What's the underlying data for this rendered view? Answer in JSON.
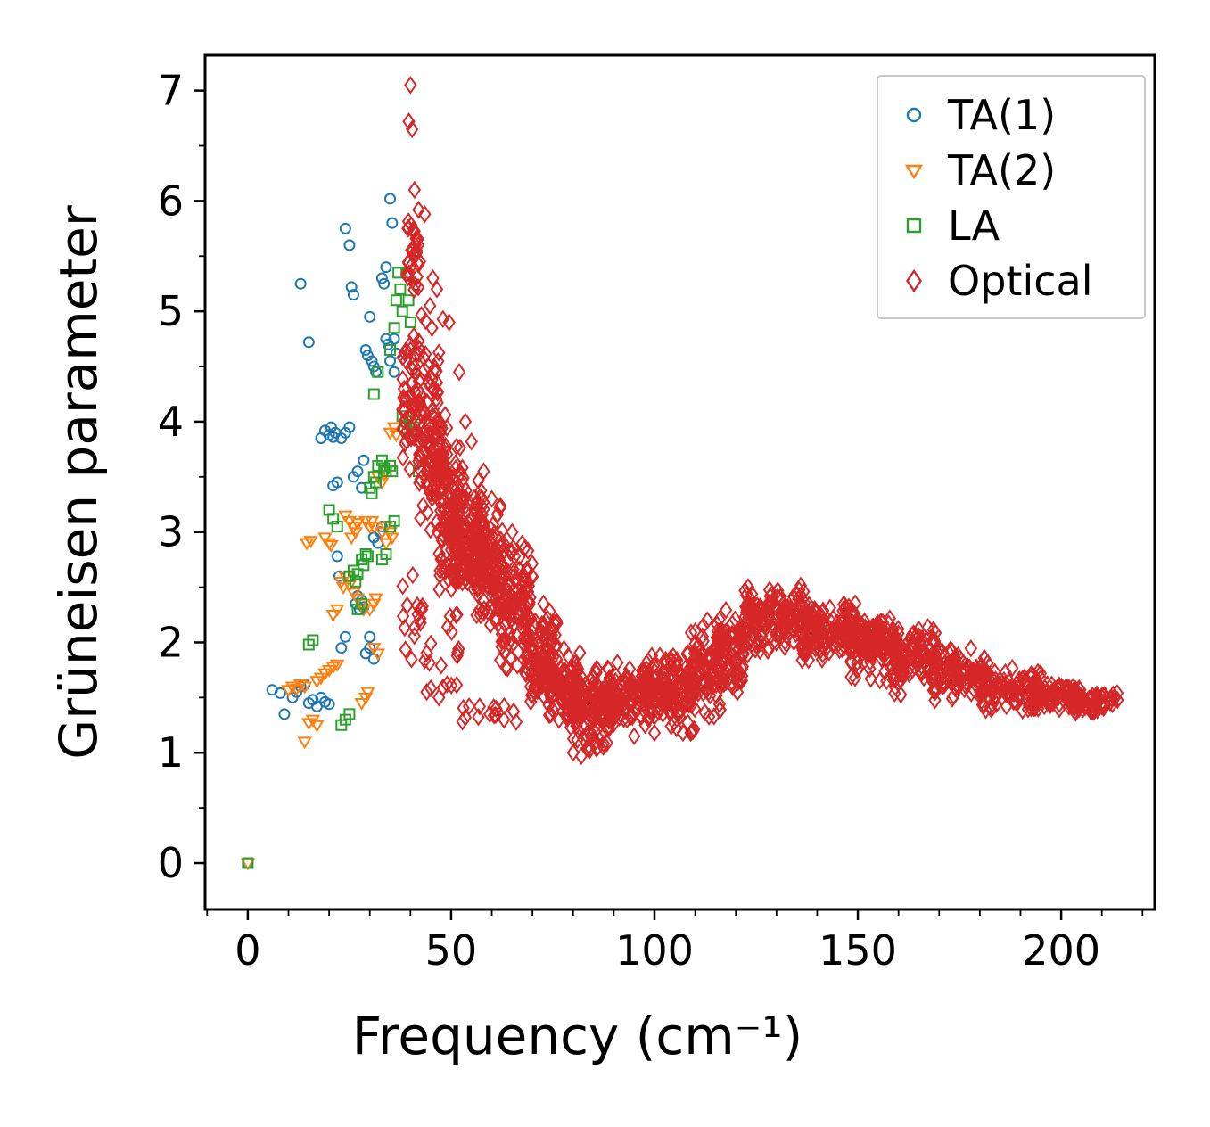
{
  "figure": {
    "background": "#ffffff"
  },
  "chart_data": {
    "type": "scatter",
    "title": "",
    "xlabel": "Frequency (cm⁻¹)",
    "ylabel": "Grüneisen parameter",
    "xlim": [
      -10.5,
      223
    ],
    "ylim": [
      -0.42,
      7.32
    ],
    "xticks": [
      0,
      50,
      100,
      150,
      200
    ],
    "yticks": [
      0,
      1,
      2,
      3,
      4,
      5,
      6,
      7
    ],
    "x_minor_step": 10,
    "y_minor_step": 0.5,
    "grid": false,
    "legend_position": "upper right",
    "series": [
      {
        "name": "TA(1)",
        "marker": "circle",
        "color": "#1f77b4",
        "points": [
          [
            0,
            0
          ],
          [
            6,
            1.57
          ],
          [
            8,
            1.54
          ],
          [
            9,
            1.35
          ],
          [
            11,
            1.5
          ],
          [
            12,
            1.55
          ],
          [
            13,
            1.6
          ],
          [
            14,
            1.62
          ],
          [
            15,
            1.45
          ],
          [
            16,
            1.48
          ],
          [
            17,
            1.42
          ],
          [
            18,
            1.5
          ],
          [
            19,
            1.46
          ],
          [
            20,
            1.44
          ],
          [
            13,
            5.25
          ],
          [
            15,
            4.72
          ],
          [
            18,
            3.85
          ],
          [
            19,
            3.92
          ],
          [
            20,
            3.88
          ],
          [
            20.5,
            3.95
          ],
          [
            21,
            3.86
          ],
          [
            21.5,
            3.9
          ],
          [
            23,
            3.85
          ],
          [
            24,
            3.9
          ],
          [
            25,
            3.95
          ],
          [
            21,
            3.42
          ],
          [
            22,
            3.45
          ],
          [
            22,
            2.78
          ],
          [
            22.5,
            2.6
          ],
          [
            23,
            1.95
          ],
          [
            24,
            2.05
          ],
          [
            24,
            5.75
          ],
          [
            25,
            5.6
          ],
          [
            25.5,
            5.22
          ],
          [
            26,
            5.15
          ],
          [
            26,
            3.5
          ],
          [
            27,
            3.55
          ],
          [
            28,
            3.4
          ],
          [
            28.5,
            3.65
          ],
          [
            26.5,
            2.35
          ],
          [
            27,
            2.42
          ],
          [
            27.5,
            2.3
          ],
          [
            28,
            2.38
          ],
          [
            28.5,
            2.32
          ],
          [
            29,
            1.9
          ],
          [
            30,
            2.05
          ],
          [
            31,
            1.85
          ],
          [
            30,
            1.95
          ],
          [
            29,
            4.65
          ],
          [
            29.5,
            4.6
          ],
          [
            30,
            4.95
          ],
          [
            30.5,
            4.55
          ],
          [
            31,
            4.5
          ],
          [
            31.5,
            4.45
          ],
          [
            31,
            2.95
          ],
          [
            32,
            2.9
          ],
          [
            32.5,
            3.0
          ],
          [
            33,
            3.05
          ],
          [
            33,
            5.3
          ],
          [
            33.5,
            5.25
          ],
          [
            34,
            4.75
          ],
          [
            34.5,
            4.7
          ],
          [
            34,
            5.4
          ],
          [
            35,
            6.02
          ],
          [
            35.5,
            5.8
          ],
          [
            36,
            4.75
          ],
          [
            36.5,
            4.62
          ],
          [
            36,
            4.45
          ],
          [
            35,
            4.55
          ]
        ]
      },
      {
        "name": "TA(2)",
        "marker": "triangle-down",
        "color": "#ff7f0e",
        "points": [
          [
            0,
            0
          ],
          [
            10,
            1.57
          ],
          [
            11,
            1.6
          ],
          [
            12,
            1.58
          ],
          [
            13,
            1.62
          ],
          [
            14,
            1.6
          ],
          [
            14,
            1.1
          ],
          [
            15,
            1.27
          ],
          [
            16,
            1.3
          ],
          [
            17,
            1.25
          ],
          [
            14.5,
            2.9
          ],
          [
            15.5,
            2.92
          ],
          [
            17,
            1.65
          ],
          [
            18,
            1.68
          ],
          [
            19,
            1.72
          ],
          [
            20,
            1.75
          ],
          [
            21,
            1.78
          ],
          [
            22,
            1.8
          ],
          [
            19,
            2.95
          ],
          [
            20,
            2.9
          ],
          [
            20.5,
            2.88
          ],
          [
            21,
            2.25
          ],
          [
            22,
            2.3
          ],
          [
            23,
            2.55
          ],
          [
            23.5,
            2.5
          ],
          [
            24,
            2.6
          ],
          [
            25,
            2.52
          ],
          [
            24,
            3.15
          ],
          [
            25,
            3.1
          ],
          [
            25.5,
            2.95
          ],
          [
            26,
            3.05
          ],
          [
            26.5,
            3.0
          ],
          [
            27,
            3.08
          ],
          [
            26,
            2.45
          ],
          [
            27,
            2.4
          ],
          [
            28,
            2.35
          ],
          [
            28.5,
            2.3
          ],
          [
            28,
            1.45
          ],
          [
            29,
            1.5
          ],
          [
            29.5,
            1.55
          ],
          [
            29,
            3.1
          ],
          [
            30,
            3.05
          ],
          [
            30.5,
            3.1
          ],
          [
            31,
            3.05
          ],
          [
            30,
            2.3
          ],
          [
            31,
            2.35
          ],
          [
            31.5,
            2.4
          ],
          [
            31,
            1.95
          ],
          [
            32,
            1.9
          ],
          [
            32,
            3.5
          ],
          [
            33,
            3.45
          ],
          [
            33.5,
            3.52
          ],
          [
            34,
            3.55
          ],
          [
            34,
            2.9
          ],
          [
            35,
            3.0
          ],
          [
            35.5,
            2.95
          ],
          [
            35,
            3.9
          ],
          [
            36,
            3.95
          ],
          [
            36.5,
            3.88
          ],
          [
            33,
            3.0
          ],
          [
            34,
            3.05
          ]
        ]
      },
      {
        "name": "LA",
        "marker": "square",
        "color": "#2ca02c",
        "points": [
          [
            0,
            0
          ],
          [
            15,
            1.98
          ],
          [
            16,
            2.02
          ],
          [
            20,
            3.2
          ],
          [
            21,
            3.12
          ],
          [
            22,
            3.05
          ],
          [
            23,
            1.25
          ],
          [
            24,
            1.3
          ],
          [
            25,
            1.35
          ],
          [
            25,
            2.6
          ],
          [
            26,
            2.65
          ],
          [
            26.5,
            2.55
          ],
          [
            27,
            2.62
          ],
          [
            27,
            2.3
          ],
          [
            28,
            2.35
          ],
          [
            28,
            2.75
          ],
          [
            28.5,
            2.7
          ],
          [
            29,
            2.8
          ],
          [
            29.5,
            2.78
          ],
          [
            30,
            3.4
          ],
          [
            30.5,
            3.35
          ],
          [
            31,
            3.5
          ],
          [
            31.5,
            3.45
          ],
          [
            31,
            4.25
          ],
          [
            32,
            4.45
          ],
          [
            32,
            3.6
          ],
          [
            33,
            3.65
          ],
          [
            33.5,
            3.58
          ],
          [
            33,
            2.75
          ],
          [
            34,
            2.8
          ],
          [
            34,
            3.55
          ],
          [
            35,
            3.6
          ],
          [
            35.5,
            3.55
          ],
          [
            35,
            3.05
          ],
          [
            36,
            3.1
          ],
          [
            35,
            4.65
          ],
          [
            36,
            4.85
          ],
          [
            36.5,
            5.1
          ],
          [
            37,
            5.35
          ],
          [
            37.5,
            5.2
          ],
          [
            38,
            5.0
          ],
          [
            38,
            4.05
          ],
          [
            38.5,
            3.95
          ],
          [
            39,
            4.0
          ],
          [
            39,
            5.35
          ],
          [
            39.5,
            5.1
          ],
          [
            40,
            4.9
          ],
          [
            40,
            4.0
          ],
          [
            41,
            3.95
          ],
          [
            41.5,
            3.9
          ],
          [
            42,
            3.55
          ]
        ]
      },
      {
        "name": "Optical",
        "marker": "diamond",
        "color": "#d62728",
        "seed": 7,
        "points": [
          [
            40,
            7.05
          ],
          [
            39.6,
            6.72
          ],
          [
            40.4,
            6.65
          ],
          [
            41,
            6.1
          ],
          [
            42,
            5.92
          ],
          [
            43.5,
            5.88
          ],
          [
            40.2,
            5.78
          ],
          [
            40.8,
            5.72
          ],
          [
            41.4,
            5.66
          ],
          [
            41.9,
            5.6
          ],
          [
            40.5,
            5.55
          ],
          [
            41.1,
            5.5
          ],
          [
            42.3,
            5.45
          ],
          [
            45.5,
            5.3
          ],
          [
            46.5,
            5.2
          ],
          [
            44.8,
            5.05
          ],
          [
            48,
            4.93
          ],
          [
            49.5,
            4.9
          ],
          [
            52,
            4.45
          ],
          [
            53.5,
            4.0
          ],
          [
            55,
            3.82
          ],
          [
            58,
            3.55
          ],
          [
            60,
            3.3
          ],
          [
            62,
            3.22
          ],
          [
            65,
            3.0
          ],
          [
            68,
            2.85
          ],
          [
            53.5,
            1.32
          ],
          [
            57,
            1.42
          ],
          [
            59.5,
            1.35
          ],
          [
            63,
            1.3
          ],
          [
            66,
            1.28
          ],
          [
            80,
            1.0
          ],
          [
            82,
            0.97
          ],
          [
            84,
            1.02
          ],
          [
            86,
            1.05
          ],
          [
            95,
            1.15
          ],
          [
            100,
            1.18
          ],
          [
            107,
            1.18
          ],
          [
            110,
            2.1
          ],
          [
            112,
            2.15
          ],
          [
            113,
            2.2
          ],
          [
            44,
            1.55
          ],
          [
            47,
            1.5
          ],
          [
            49,
            1.62
          ]
        ],
        "bands": [
          [
            38,
            43,
            3.3,
            5.0,
            60
          ],
          [
            39,
            42,
            5.0,
            5.85,
            25
          ],
          [
            42,
            47,
            2.9,
            5.0,
            70
          ],
          [
            44,
            49,
            3.3,
            4.1,
            60
          ],
          [
            47,
            53,
            2.4,
            4.0,
            110
          ],
          [
            50,
            58,
            2.3,
            3.5,
            150
          ],
          [
            56,
            63,
            2.1,
            3.3,
            130
          ],
          [
            62,
            70,
            1.7,
            2.9,
            120
          ],
          [
            68,
            76,
            1.4,
            2.4,
            110
          ],
          [
            74,
            82,
            1.2,
            2.0,
            100
          ],
          [
            80,
            90,
            1.05,
            1.8,
            120
          ],
          [
            88,
            100,
            1.2,
            1.85,
            130
          ],
          [
            98,
            110,
            1.25,
            1.9,
            130
          ],
          [
            108,
            117,
            1.3,
            2.2,
            90
          ],
          [
            115,
            123,
            1.5,
            2.35,
            90
          ],
          [
            122,
            138,
            1.9,
            2.55,
            160
          ],
          [
            136,
            150,
            1.8,
            2.4,
            150
          ],
          [
            148,
            160,
            1.6,
            2.35,
            120
          ],
          [
            158,
            170,
            1.5,
            2.2,
            110
          ],
          [
            168,
            182,
            1.45,
            2.0,
            110
          ],
          [
            180,
            195,
            1.35,
            1.8,
            110
          ],
          [
            193,
            205,
            1.35,
            1.65,
            90
          ],
          [
            203,
            214,
            1.35,
            1.55,
            60
          ],
          [
            38,
            44,
            1.6,
            2.7,
            18
          ],
          [
            44,
            52,
            1.5,
            2.3,
            15
          ],
          [
            52,
            66,
            1.25,
            1.45,
            10
          ],
          [
            78,
            88,
            0.95,
            1.12,
            8
          ],
          [
            104,
            112,
            1.15,
            1.35,
            8
          ]
        ]
      }
    ]
  },
  "legend": {
    "items": [
      "TA(1)",
      "TA(2)",
      "LA",
      "Optical"
    ]
  }
}
